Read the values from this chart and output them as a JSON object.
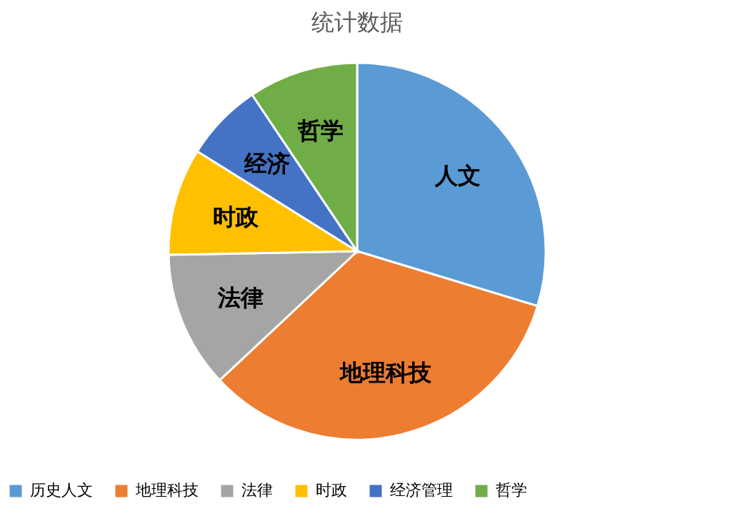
{
  "chart_data": {
    "type": "pie",
    "title": "统计数据",
    "categories": [
      "历史人文",
      "地理科技",
      "法律",
      "时政",
      "经济管理",
      "哲学"
    ],
    "values": [
      29.7,
      33.3,
      11.7,
      9.2,
      6.7,
      9.4
    ],
    "colors": [
      "#5b9bd5",
      "#ed7d31",
      "#a5a5a5",
      "#ffc000",
      "#4472c4",
      "#70ad47"
    ],
    "annotations": [
      "人文",
      "地理科技",
      "法律",
      "时政",
      "经济",
      "哲学"
    ],
    "legend": "bottom"
  }
}
